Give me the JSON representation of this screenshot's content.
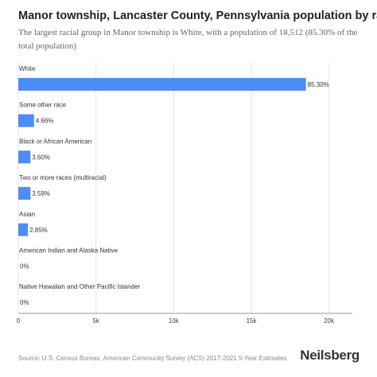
{
  "header": {
    "title": "Manor township, Lancaster County, Pennsylvania population by race",
    "subtitle": "The largest racial group in Manor township is White, with a population of 18,512 (85.30% of the total population)"
  },
  "chart_data": {
    "type": "bar",
    "orientation": "horizontal",
    "categories": [
      "White",
      "Some other race",
      "Black or African American",
      "Two or more races (multiracial)",
      "Asian",
      "American Indian and Alaska Native",
      "Native Hawaiian and Other Pacific Islander"
    ],
    "values": [
      18512,
      1011,
      781,
      779,
      619,
      0,
      0
    ],
    "data_labels": [
      "85.30%",
      "4.66%",
      "3.60%",
      "3.59%",
      "2.85%",
      "0%",
      "0%"
    ],
    "xlim": [
      0,
      21500
    ],
    "x_ticks": [
      0,
      5000,
      10000,
      15000,
      20000
    ],
    "x_tick_labels": [
      "0",
      "5k",
      "10k",
      "15k",
      "20k"
    ],
    "grid": true,
    "bar_color": "#4c8df6"
  },
  "footer": {
    "source": "Source: U.S. Census Bureau, American Community Survey (ACS) 2017-2021 5-Year Estimates",
    "brand": "Neilsberg"
  }
}
